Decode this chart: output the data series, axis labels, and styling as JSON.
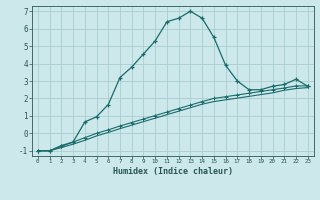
{
  "xlabel": "Humidex (Indice chaleur)",
  "background_color": "#cce8ea",
  "grid_color": "#a8cdd0",
  "line_color": "#1a6b6b",
  "xlim": [
    -0.5,
    23.5
  ],
  "ylim": [
    -1.3,
    7.3
  ],
  "xticks": [
    0,
    1,
    2,
    3,
    4,
    5,
    6,
    7,
    8,
    9,
    10,
    11,
    12,
    13,
    14,
    15,
    16,
    17,
    18,
    19,
    20,
    21,
    22,
    23
  ],
  "yticks": [
    -1,
    0,
    1,
    2,
    3,
    4,
    5,
    6,
    7
  ],
  "curve1_x": [
    0,
    1,
    2,
    3,
    4,
    5,
    6,
    7,
    8,
    9,
    10,
    11,
    12,
    13,
    14,
    15,
    16,
    17,
    18,
    19,
    20,
    21,
    22,
    23
  ],
  "curve1_y": [
    -1,
    -1,
    -0.7,
    -0.5,
    0.65,
    0.95,
    1.65,
    3.2,
    3.8,
    4.55,
    5.3,
    6.4,
    6.6,
    7.0,
    6.6,
    5.5,
    3.9,
    3.0,
    2.5,
    2.5,
    2.7,
    2.8,
    3.1,
    2.7
  ],
  "curve2_x": [
    0,
    1,
    2,
    3,
    4,
    5,
    6,
    7,
    8,
    9,
    10,
    11,
    12,
    13,
    14,
    15,
    16,
    17,
    18,
    19,
    20,
    21,
    22,
    23
  ],
  "curve2_y": [
    -1,
    -1,
    -0.75,
    -0.5,
    -0.25,
    0.0,
    0.2,
    0.42,
    0.62,
    0.82,
    1.02,
    1.22,
    1.42,
    1.62,
    1.82,
    2.0,
    2.1,
    2.2,
    2.3,
    2.4,
    2.5,
    2.6,
    2.72,
    2.72
  ],
  "curve3_x": [
    0,
    1,
    2,
    3,
    4,
    5,
    6,
    7,
    8,
    9,
    10,
    11,
    12,
    13,
    14,
    15,
    16,
    17,
    18,
    19,
    20,
    21,
    22,
    23
  ],
  "curve3_y": [
    -1,
    -1,
    -0.82,
    -0.62,
    -0.4,
    -0.15,
    0.05,
    0.27,
    0.47,
    0.67,
    0.87,
    1.07,
    1.27,
    1.47,
    1.67,
    1.82,
    1.92,
    2.02,
    2.12,
    2.22,
    2.32,
    2.47,
    2.57,
    2.62
  ]
}
